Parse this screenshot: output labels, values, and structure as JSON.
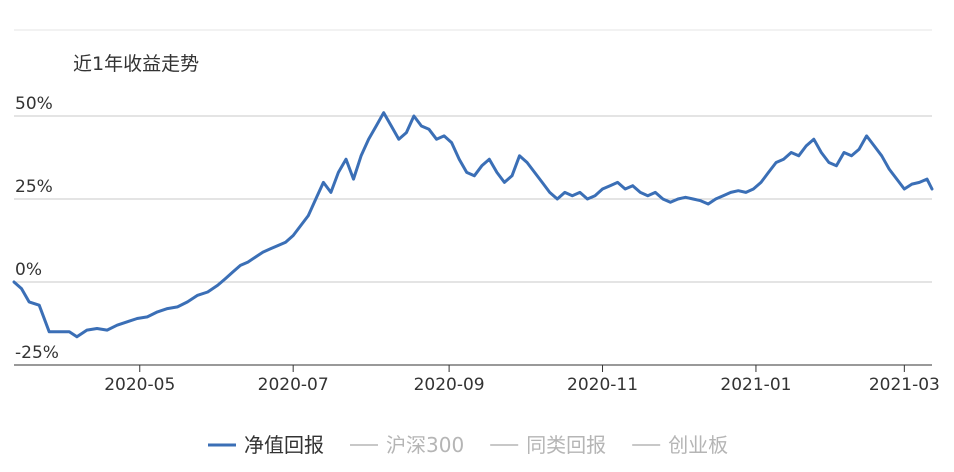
{
  "chart_data": {
    "type": "line",
    "title": "近1年收益走势",
    "xlabel": "",
    "ylabel": "",
    "ylim": [
      -25,
      50
    ],
    "y_ticks": [
      {
        "value": 50,
        "label": "50%"
      },
      {
        "value": 25,
        "label": "25%"
      },
      {
        "value": 0,
        "label": "0%"
      },
      {
        "value": -25,
        "label": "-25%"
      }
    ],
    "x_ticks": [
      "2020-05",
      "2020-07",
      "2020-09",
      "2020-11",
      "2021-01",
      "2021-03"
    ],
    "x_range": [
      "2020-03-12",
      "2021-03-12"
    ],
    "grid": true,
    "legend_position": "bottom",
    "legend": [
      {
        "name": "净值回报",
        "color": "#3b6fb6",
        "active": true
      },
      {
        "name": "沪深300",
        "color": "#c8c8c8",
        "active": false
      },
      {
        "name": "同类回报",
        "color": "#c8c8c8",
        "active": false
      },
      {
        "name": "创业板",
        "color": "#c8c8c8",
        "active": false
      }
    ],
    "series": [
      {
        "name": "净值回报",
        "color": "#3b6fb6",
        "points": [
          [
            "2020-03-12",
            0
          ],
          [
            "2020-03-15",
            -2
          ],
          [
            "2020-03-18",
            -6
          ],
          [
            "2020-03-22",
            -7
          ],
          [
            "2020-03-26",
            -15
          ],
          [
            "2020-03-30",
            -15
          ],
          [
            "2020-04-03",
            -15
          ],
          [
            "2020-04-06",
            -16.5
          ],
          [
            "2020-04-10",
            -14.5
          ],
          [
            "2020-04-14",
            -14
          ],
          [
            "2020-04-18",
            -14.5
          ],
          [
            "2020-04-22",
            -13
          ],
          [
            "2020-04-26",
            -12
          ],
          [
            "2020-04-30",
            -11
          ],
          [
            "2020-05-04",
            -10.5
          ],
          [
            "2020-05-08",
            -9
          ],
          [
            "2020-05-12",
            -8
          ],
          [
            "2020-05-16",
            -7.5
          ],
          [
            "2020-05-20",
            -6
          ],
          [
            "2020-05-24",
            -4
          ],
          [
            "2020-05-28",
            -3
          ],
          [
            "2020-06-01",
            -1
          ],
          [
            "2020-06-04",
            1
          ],
          [
            "2020-06-07",
            3
          ],
          [
            "2020-06-10",
            5
          ],
          [
            "2020-06-13",
            6
          ],
          [
            "2020-06-16",
            7.5
          ],
          [
            "2020-06-19",
            9
          ],
          [
            "2020-06-22",
            10
          ],
          [
            "2020-06-25",
            11
          ],
          [
            "2020-06-28",
            12
          ],
          [
            "2020-07-01",
            14
          ],
          [
            "2020-07-04",
            17
          ],
          [
            "2020-07-07",
            20
          ],
          [
            "2020-07-10",
            25
          ],
          [
            "2020-07-13",
            30
          ],
          [
            "2020-07-16",
            27
          ],
          [
            "2020-07-19",
            33
          ],
          [
            "2020-07-22",
            37
          ],
          [
            "2020-07-25",
            31
          ],
          [
            "2020-07-28",
            38
          ],
          [
            "2020-07-31",
            43
          ],
          [
            "2020-08-03",
            47
          ],
          [
            "2020-08-06",
            51
          ],
          [
            "2020-08-09",
            47
          ],
          [
            "2020-08-12",
            43
          ],
          [
            "2020-08-15",
            45
          ],
          [
            "2020-08-18",
            50
          ],
          [
            "2020-08-21",
            47
          ],
          [
            "2020-08-24",
            46
          ],
          [
            "2020-08-27",
            43
          ],
          [
            "2020-08-30",
            44
          ],
          [
            "2020-09-02",
            42
          ],
          [
            "2020-09-05",
            37
          ],
          [
            "2020-09-08",
            33
          ],
          [
            "2020-09-11",
            32
          ],
          [
            "2020-09-14",
            35
          ],
          [
            "2020-09-17",
            37
          ],
          [
            "2020-09-20",
            33
          ],
          [
            "2020-09-23",
            30
          ],
          [
            "2020-09-26",
            32
          ],
          [
            "2020-09-29",
            38
          ],
          [
            "2020-10-02",
            36
          ],
          [
            "2020-10-05",
            33
          ],
          [
            "2020-10-08",
            30
          ],
          [
            "2020-10-11",
            27
          ],
          [
            "2020-10-14",
            25
          ],
          [
            "2020-10-17",
            27
          ],
          [
            "2020-10-20",
            26
          ],
          [
            "2020-10-23",
            27
          ],
          [
            "2020-10-26",
            25
          ],
          [
            "2020-10-29",
            26
          ],
          [
            "2020-11-01",
            28
          ],
          [
            "2020-11-04",
            29
          ],
          [
            "2020-11-07",
            30
          ],
          [
            "2020-11-10",
            28
          ],
          [
            "2020-11-13",
            29
          ],
          [
            "2020-11-16",
            27
          ],
          [
            "2020-11-19",
            26
          ],
          [
            "2020-11-22",
            27
          ],
          [
            "2020-11-25",
            25
          ],
          [
            "2020-11-28",
            24
          ],
          [
            "2020-12-01",
            25
          ],
          [
            "2020-12-04",
            25.5
          ],
          [
            "2020-12-07",
            25
          ],
          [
            "2020-12-10",
            24.5
          ],
          [
            "2020-12-13",
            23.5
          ],
          [
            "2020-12-16",
            25
          ],
          [
            "2020-12-19",
            26
          ],
          [
            "2020-12-22",
            27
          ],
          [
            "2020-12-25",
            27.5
          ],
          [
            "2020-12-28",
            27
          ],
          [
            "2020-12-31",
            28
          ],
          [
            "2021-01-03",
            30
          ],
          [
            "2021-01-06",
            33
          ],
          [
            "2021-01-09",
            36
          ],
          [
            "2021-01-12",
            37
          ],
          [
            "2021-01-15",
            39
          ],
          [
            "2021-01-18",
            38
          ],
          [
            "2021-01-21",
            41
          ],
          [
            "2021-01-24",
            43
          ],
          [
            "2021-01-27",
            39
          ],
          [
            "2021-01-30",
            36
          ],
          [
            "2021-02-02",
            35
          ],
          [
            "2021-02-05",
            39
          ],
          [
            "2021-02-08",
            38
          ],
          [
            "2021-02-11",
            40
          ],
          [
            "2021-02-14",
            44
          ],
          [
            "2021-02-17",
            41
          ],
          [
            "2021-02-20",
            38
          ],
          [
            "2021-02-23",
            34
          ],
          [
            "2021-02-26",
            31
          ],
          [
            "2021-03-01",
            28
          ],
          [
            "2021-03-04",
            29.5
          ],
          [
            "2021-03-07",
            30
          ],
          [
            "2021-03-10",
            31
          ],
          [
            "2021-03-12",
            28
          ]
        ]
      }
    ]
  }
}
